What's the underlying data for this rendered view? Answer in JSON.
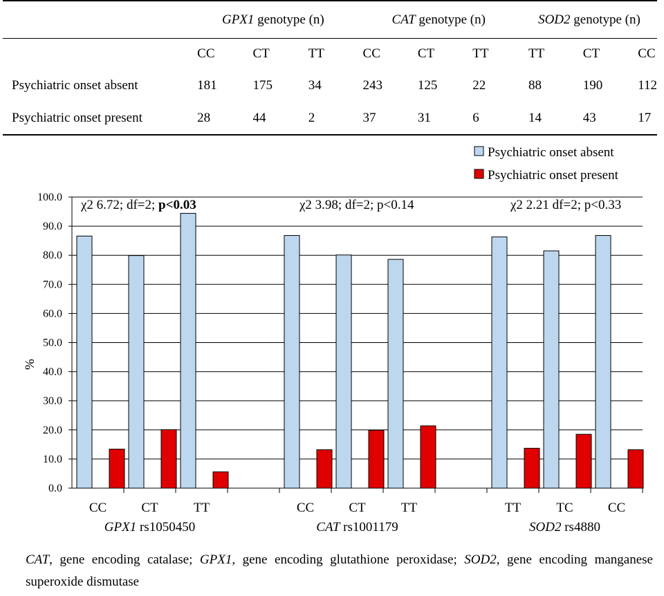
{
  "table": {
    "groups": [
      {
        "gene": "GPX1",
        "suffix": " genotype (n)",
        "genotypes": [
          "CC",
          "CT",
          "TT"
        ]
      },
      {
        "gene": "CAT",
        "suffix": " genotype (n)",
        "genotypes": [
          "CC",
          "CT",
          "TT"
        ]
      },
      {
        "gene": "SOD2",
        "suffix": " genotype (n)",
        "genotypes": [
          "TT",
          "CT",
          "CC"
        ]
      }
    ],
    "rows": [
      {
        "label": "Psychiatric onset absent",
        "values": [
          "181",
          "175",
          "34",
          "243",
          "125",
          "22",
          "88",
          "190",
          "112"
        ]
      },
      {
        "label": "Psychiatric onset present",
        "values": [
          "28",
          "44",
          "2",
          "37",
          "31",
          "6",
          "14",
          "43",
          "17"
        ]
      }
    ]
  },
  "chart_data": {
    "type": "bar",
    "ylabel": "%",
    "ylim": [
      0,
      100
    ],
    "yticks": [
      "0.0",
      "10.0",
      "20.0",
      "30.0",
      "40.0",
      "50.0",
      "60.0",
      "70.0",
      "80.0",
      "90.0",
      "100.0"
    ],
    "grid": true,
    "legend_position": "top-right",
    "categories": [
      "CC",
      "CT",
      "TT",
      "",
      "CC",
      "CT",
      "TT",
      "",
      "TT",
      "TC",
      "CC"
    ],
    "series": [
      {
        "name": "Psychiatric onset absent",
        "color": "#bdd7ee",
        "values": [
          86.6,
          79.9,
          94.4,
          null,
          86.8,
          80.1,
          78.6,
          null,
          86.3,
          81.5,
          86.8
        ]
      },
      {
        "name": "Psychiatric onset present",
        "color": "#e00000",
        "values": [
          13.4,
          20.1,
          5.6,
          null,
          13.2,
          19.9,
          21.4,
          null,
          13.7,
          18.5,
          13.2
        ]
      }
    ],
    "group_labels": [
      {
        "gene": "GPX1",
        "snp": " rs1050450"
      },
      {
        "gene": "CAT",
        "snp": " rs1001179"
      },
      {
        "gene": "SOD2",
        "snp": " rs4880"
      }
    ],
    "annotations": [
      {
        "text": "χ2 6.72; df=2; ",
        "bold": "p<0.03"
      },
      {
        "text": "χ2 3.98; df=2; p<0.14",
        "bold": ""
      },
      {
        "text": "χ2 2.21 df=2; p<0.33",
        "bold": ""
      }
    ]
  },
  "caption": {
    "parts": [
      {
        "text": "CAT",
        "italic": true
      },
      {
        "text": ", gene encoding catalase; ",
        "italic": false
      },
      {
        "text": "GPX1",
        "italic": true
      },
      {
        "text": ", gene encoding glutathione peroxidase; ",
        "italic": false
      },
      {
        "text": "SOD2",
        "italic": true
      },
      {
        "text": ", gene encoding manganese superoxide dismutase",
        "italic": false
      }
    ]
  }
}
